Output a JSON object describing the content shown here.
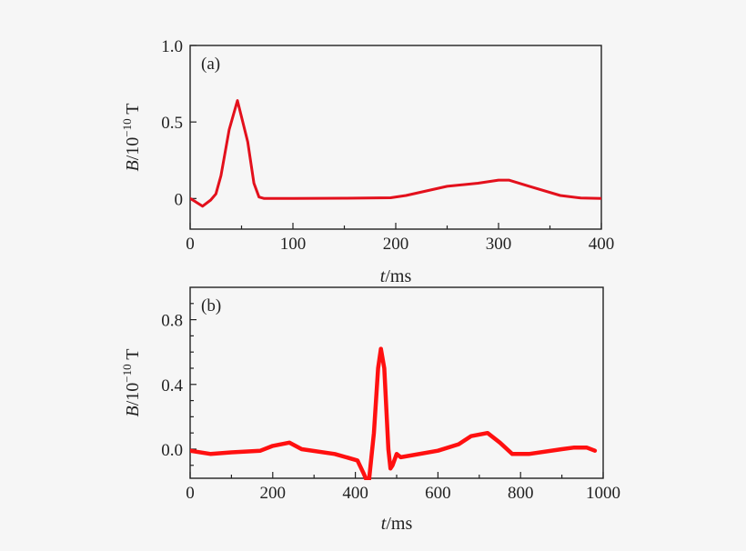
{
  "chart_data": [
    {
      "type": "line",
      "panel_label": "(a)",
      "xlabel_var": "t",
      "xlabel_unit": "/ms",
      "ylabel_var": "B",
      "ylabel_unit": "/10",
      "ylabel_exp": "−10",
      "ylabel_tail": " T",
      "xlim": [
        0,
        400
      ],
      "ylim": [
        -0.2,
        1.0
      ],
      "xticks": [
        0,
        100,
        200,
        300,
        400
      ],
      "xtick_labels": [
        "0",
        "100",
        "200",
        "300",
        "400"
      ],
      "xminor": [
        50,
        150,
        250,
        350
      ],
      "yticks": [
        0,
        0.5,
        1.0
      ],
      "ytick_labels": [
        "0",
        "0.5",
        "1.0"
      ],
      "yminor": [],
      "color": "#e3101c",
      "grid": false,
      "x": [
        0,
        5,
        12,
        20,
        25,
        30,
        38,
        46,
        56,
        62,
        67,
        72,
        100,
        150,
        195,
        210,
        250,
        280,
        300,
        310,
        330,
        360,
        380,
        400
      ],
      "y": [
        0,
        -0.02,
        -0.05,
        -0.01,
        0.03,
        0.15,
        0.45,
        0.64,
        0.37,
        0.1,
        0.01,
        0,
        0,
        0.002,
        0.005,
        0.02,
        0.08,
        0.1,
        0.12,
        0.12,
        0.08,
        0.02,
        0.003,
        0
      ]
    },
    {
      "type": "line",
      "panel_label": "(b)",
      "xlabel_var": "t",
      "xlabel_unit": "/ms",
      "ylabel_var": "B",
      "ylabel_unit": "/10",
      "ylabel_exp": "−10",
      "ylabel_tail": " T",
      "xlim": [
        0,
        1000
      ],
      "ylim": [
        -0.18,
        1.0
      ],
      "xticks": [
        0,
        200,
        400,
        600,
        800,
        1000
      ],
      "xtick_labels": [
        "0",
        "200",
        "400",
        "600",
        "800",
        "1000"
      ],
      "xminor": [
        100,
        300,
        500,
        700,
        900
      ],
      "yticks": [
        0,
        0.4,
        0.8
      ],
      "ytick_labels": [
        "0.0",
        "0.4",
        "0.8"
      ],
      "yminor": [
        -0.1,
        0.1,
        0.2,
        0.3,
        0.5,
        0.6,
        0.7,
        0.9
      ],
      "color": "#ff1010",
      "grid": false,
      "x": [
        0,
        50,
        100,
        170,
        200,
        240,
        270,
        350,
        405,
        420,
        432,
        445,
        455,
        462,
        470,
        480,
        485,
        490,
        500,
        510,
        600,
        650,
        680,
        720,
        750,
        780,
        820,
        900,
        930,
        960,
        980
      ],
      "y": [
        -0.01,
        -0.03,
        -0.02,
        -0.01,
        0.02,
        0.04,
        0.0,
        -0.03,
        -0.07,
        -0.15,
        -0.22,
        0.1,
        0.5,
        0.62,
        0.5,
        0.0,
        -0.12,
        -0.1,
        -0.03,
        -0.05,
        -0.01,
        0.03,
        0.08,
        0.1,
        0.04,
        -0.03,
        -0.03,
        0.0,
        0.01,
        0.01,
        -0.01
      ]
    }
  ]
}
